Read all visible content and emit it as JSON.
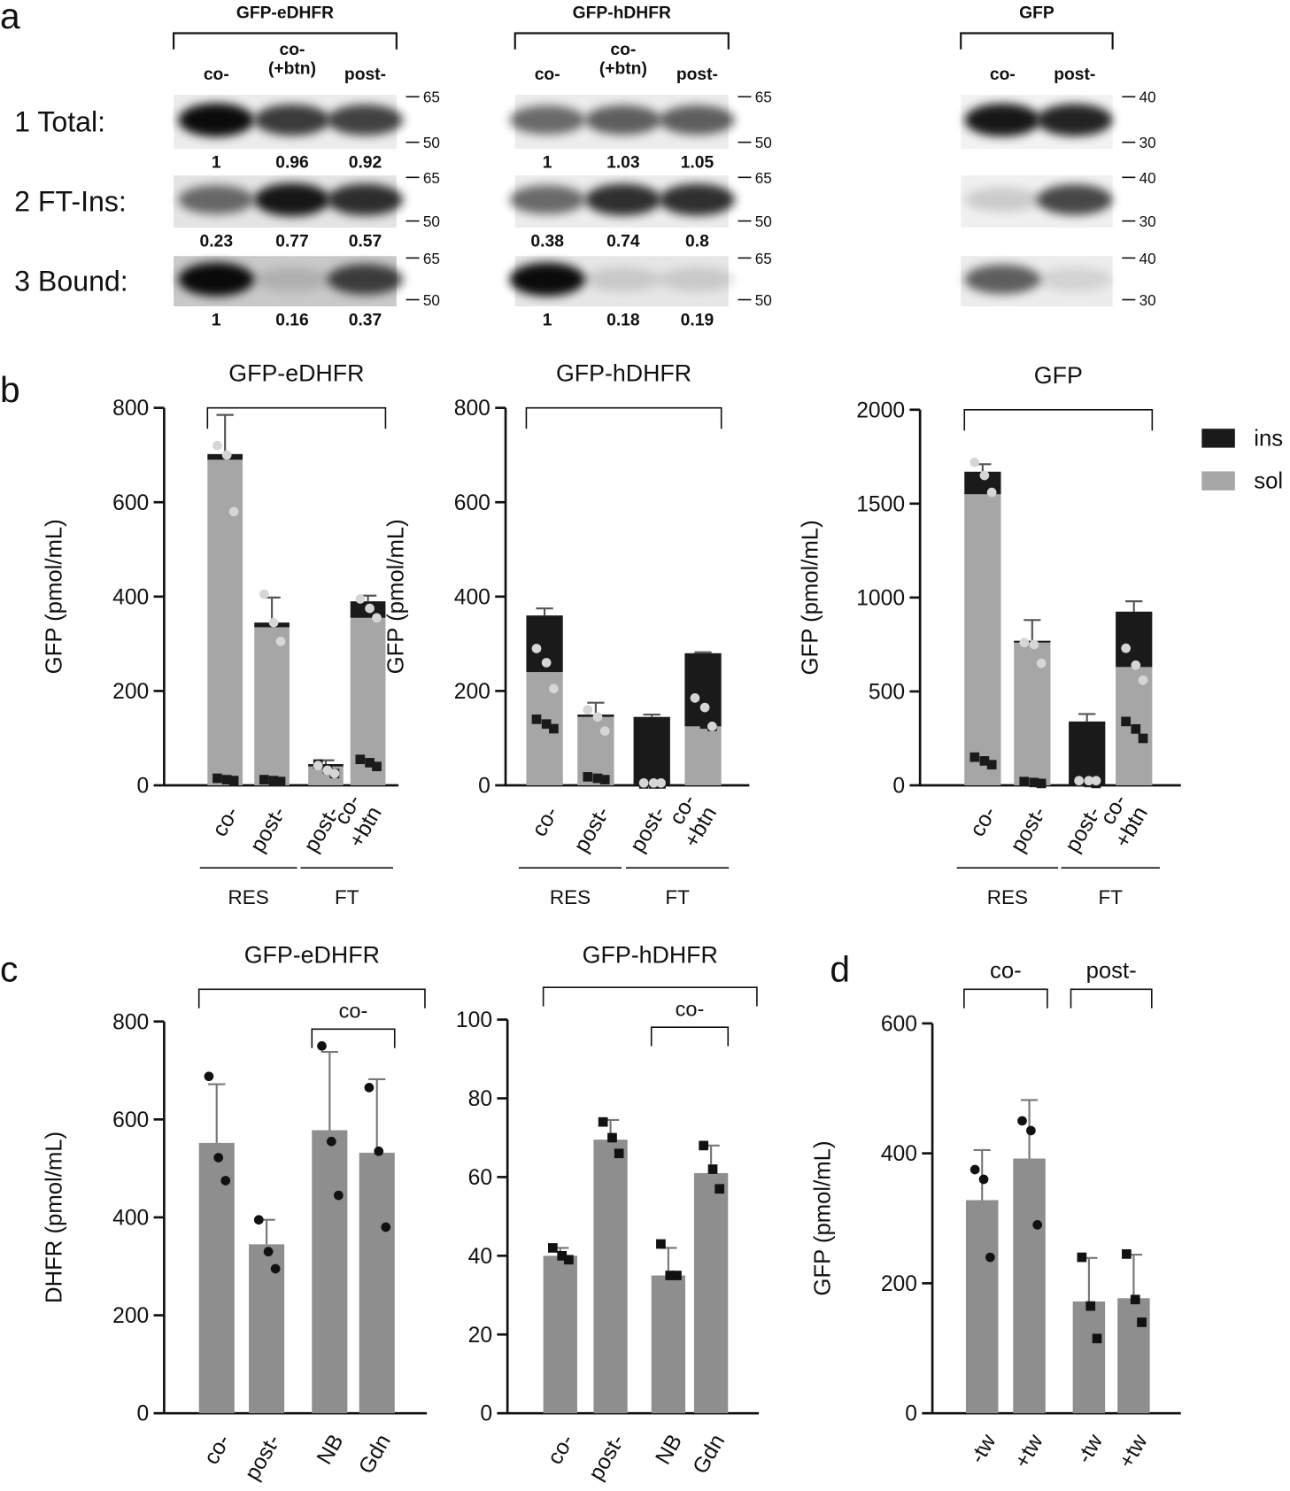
{
  "panel_labels": [
    "a",
    "b",
    "c",
    "d"
  ],
  "blots": {
    "rows": [
      "1 Total:",
      "2 FT-Ins:",
      "3 Bound:"
    ],
    "groups": [
      {
        "title": "GFP-eDHFR",
        "lanes": [
          "co-",
          "co-\n(+btn)",
          "post-"
        ],
        "markers": [
          65,
          50
        ],
        "quant": [
          [
            1,
            0.96,
            0.92
          ],
          [
            0.23,
            0.77,
            0.57
          ],
          [
            1,
            0.16,
            0.37
          ]
        ]
      },
      {
        "title": "GFP-hDHFR",
        "lanes": [
          "co-",
          "co-\n(+btn)",
          "post-"
        ],
        "markers": [
          65,
          50
        ],
        "quant": [
          [
            1,
            1.03,
            1.05
          ],
          [
            0.38,
            0.74,
            0.8
          ],
          [
            1,
            0.18,
            0.19
          ]
        ]
      },
      {
        "title": "GFP",
        "lanes": [
          "co-",
          "post-"
        ],
        "markers": [
          40,
          30
        ]
      }
    ]
  },
  "chart_data": [
    {
      "type": "stacked_bar",
      "title": "GFP-eDHFR",
      "y_label": "GFP (pmol/mL)",
      "categories": [
        "co-",
        "post-",
        "post-",
        "co-\n+btn"
      ],
      "group_labels": [
        "RES",
        "FT"
      ],
      "ylim": [
        0,
        800
      ],
      "yticks": [
        0,
        200,
        400,
        600,
        800
      ],
      "series": [
        {
          "name": "ins",
          "color": "#1a1a1a",
          "marker": "square",
          "values": [
            12,
            10,
            5,
            35
          ],
          "errors": [
            83,
            53,
            8,
            12
          ],
          "points": [
            [
              15,
              12,
              10
            ],
            [
              12,
              10,
              8
            ],
            [
              45,
              35,
              25
            ],
            [
              55,
              48,
              40
            ]
          ]
        },
        {
          "name": "sol",
          "color": "#a6a6a6",
          "marker": "circle",
          "values": [
            690,
            335,
            40,
            355
          ],
          "points": [
            [
              720,
              700,
              580
            ],
            [
              405,
              345,
              305
            ],
            [
              42,
              32,
              25
            ],
            [
              395,
              375,
              355
            ]
          ]
        }
      ]
    },
    {
      "type": "stacked_bar",
      "title": "GFP-hDHFR",
      "y_label": "GFP (pmol/mL)",
      "categories": [
        "co-",
        "post-",
        "post-",
        "co-\n+btn"
      ],
      "group_labels": [
        "RES",
        "FT"
      ],
      "ylim": [
        0,
        800
      ],
      "yticks": [
        0,
        200,
        400,
        600,
        800
      ],
      "series": [
        {
          "name": "ins",
          "color": "#1a1a1a",
          "marker": "square",
          "values": [
            120,
            5,
            145,
            155
          ],
          "errors": [
            15,
            25,
            5,
            2
          ],
          "points": [
            [
              140,
              130,
              120
            ],
            [
              18,
              15,
              12
            ],
            [
              3,
              3,
              3
            ],
            [
              140,
              130,
              125
            ]
          ]
        },
        {
          "name": "sol",
          "color": "#a6a6a6",
          "marker": "circle",
          "values": [
            240,
            145,
            0,
            125
          ],
          "errors": [
            50,
            null,
            null,
            60
          ],
          "points": [
            [
              290,
              260,
              205
            ],
            [
              160,
              145,
              115
            ],
            [
              5,
              5,
              5
            ],
            [
              185,
              165,
              125
            ]
          ]
        }
      ]
    },
    {
      "type": "stacked_bar",
      "title": "GFP",
      "y_label": "GFP (pmol/mL)",
      "legend": "upper right",
      "categories": [
        "co-",
        "post-",
        "post-",
        "co-\n+btn"
      ],
      "group_labels": [
        "RES",
        "FT"
      ],
      "ylim": [
        0,
        2000
      ],
      "yticks": [
        0,
        500,
        1000,
        1500,
        2000
      ],
      "series": [
        {
          "name": "ins",
          "color": "#1a1a1a",
          "marker": "square",
          "values": [
            120,
            10,
            340,
            295
          ],
          "errors": [
            40,
            110,
            40,
            55
          ],
          "points": [
            [
              150,
              130,
              110
            ],
            [
              20,
              15,
              10
            ],
            [
              20,
              15,
              10
            ],
            [
              340,
              300,
              250
            ]
          ]
        },
        {
          "name": "sol",
          "color": "#a6a6a6",
          "marker": "circle",
          "values": [
            1550,
            760,
            0,
            630
          ],
          "errors": [
            null,
            null,
            null,
            100
          ],
          "points": [
            [
              1720,
              1650,
              1560
            ],
            [
              760,
              750,
              650
            ],
            [
              25,
              25,
              25
            ],
            [
              730,
              640,
              560
            ]
          ]
        }
      ]
    },
    {
      "type": "bar",
      "title": "GFP-eDHFR",
      "y_label": "DHFR (pmol/mL)",
      "color": "#8e8e8e",
      "categories": [
        "co-",
        "post-",
        "NB",
        "Gdn"
      ],
      "bracket_label": "co-",
      "ylim": [
        0,
        800
      ],
      "yticks": [
        0,
        200,
        400,
        600,
        800
      ],
      "values": [
        552,
        345,
        578,
        532
      ],
      "errors": [
        120,
        50,
        160,
        150
      ],
      "point_markers": [
        "circle",
        "circle",
        "circle",
        "circle"
      ],
      "points": [
        [
          688,
          522,
          475
        ],
        [
          395,
          330,
          295
        ],
        [
          750,
          555,
          445
        ],
        [
          665,
          535,
          380
        ]
      ]
    },
    {
      "type": "bar",
      "title": "GFP-hDHFR",
      "color": "#8e8e8e",
      "categories": [
        "co-",
        "post-",
        "NB",
        "Gdn"
      ],
      "bracket_label": "co-",
      "ylim": [
        0,
        100
      ],
      "yticks": [
        0,
        20,
        40,
        60,
        80,
        100
      ],
      "values": [
        40,
        69.5,
        35,
        61
      ],
      "errors": [
        2,
        5,
        7,
        7
      ],
      "point_markers": [
        "square",
        "square",
        "square",
        "square"
      ],
      "points": [
        [
          42,
          40,
          39
        ],
        [
          74,
          70,
          66
        ],
        [
          43,
          35,
          35
        ],
        [
          68,
          62,
          57
        ]
      ]
    },
    {
      "type": "bar",
      "y_label": "GFP (pmol/mL)",
      "color": "#8e8e8e",
      "categories": [
        "-tw",
        "+tw",
        "-tw",
        "+tw"
      ],
      "group_labels": [
        "co-",
        "post-"
      ],
      "ylim": [
        0,
        600
      ],
      "yticks": [
        0,
        200,
        400,
        600
      ],
      "values": [
        328,
        392,
        172,
        177
      ],
      "errors": [
        77,
        90,
        67,
        67
      ],
      "point_markers": [
        "circle",
        "circle",
        "square",
        "square"
      ],
      "points": [
        [
          375,
          360,
          240
        ],
        [
          450,
          435,
          290
        ],
        [
          240,
          165,
          115
        ],
        [
          245,
          175,
          140
        ]
      ]
    }
  ]
}
